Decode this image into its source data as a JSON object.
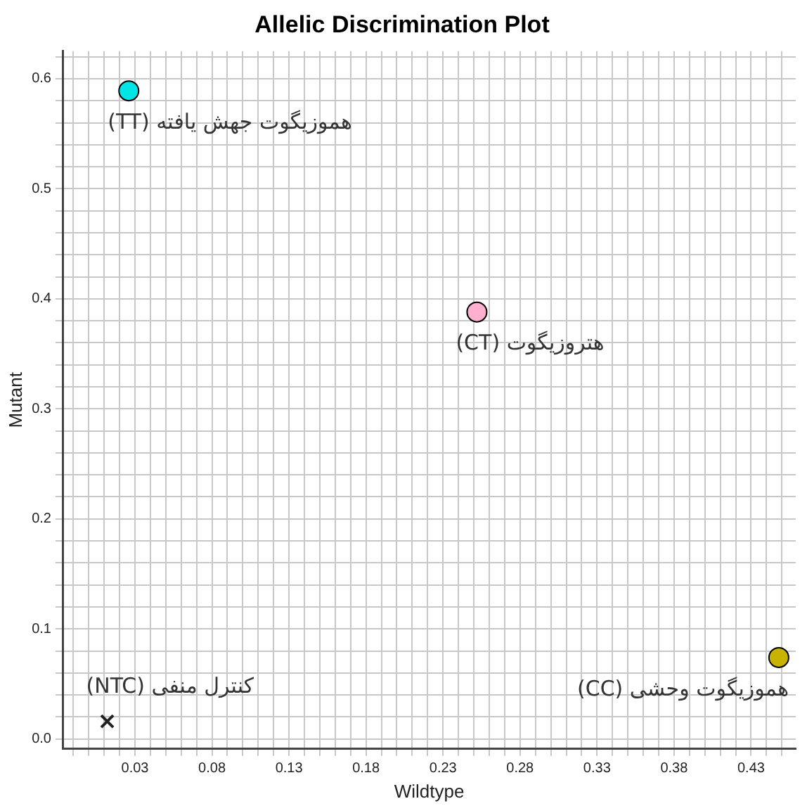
{
  "chart_data": {
    "type": "scatter",
    "title": "Allelic Discrimination Plot",
    "xlabel": "Wildtype",
    "ylabel": "Mutant",
    "xlim": [
      -0.017,
      0.459
    ],
    "ylim": [
      -0.009,
      0.625
    ],
    "xticks": [
      {
        "value": -0.01,
        "label": null
      },
      {
        "value": 0,
        "label": null
      },
      {
        "value": 0.01,
        "label": null
      },
      {
        "value": 0.02,
        "label": null
      },
      0.03,
      {
        "value": 0.04,
        "label": null
      },
      {
        "value": 0.05,
        "label": null
      },
      {
        "value": 0.06,
        "label": null
      },
      {
        "value": 0.07,
        "label": null
      },
      0.08,
      {
        "value": 0.09,
        "label": null
      },
      {
        "value": 0.1,
        "label": null
      },
      {
        "value": 0.11,
        "label": null
      },
      {
        "value": 0.12,
        "label": null
      },
      0.13,
      {
        "value": 0.14,
        "label": null
      },
      {
        "value": 0.15,
        "label": null
      },
      {
        "value": 0.16,
        "label": null
      },
      {
        "value": 0.17,
        "label": null
      },
      0.18,
      {
        "value": 0.19,
        "label": null
      },
      {
        "value": 0.2,
        "label": null
      },
      {
        "value": 0.21,
        "label": null
      },
      {
        "value": 0.22,
        "label": null
      },
      0.23,
      {
        "value": 0.24,
        "label": null
      },
      {
        "value": 0.25,
        "label": null
      },
      {
        "value": 0.26,
        "label": null
      },
      {
        "value": 0.27,
        "label": null
      },
      0.28,
      {
        "value": 0.29,
        "label": null
      },
      {
        "value": 0.3,
        "label": null
      },
      {
        "value": 0.31,
        "label": null
      },
      {
        "value": 0.32,
        "label": null
      },
      0.33,
      {
        "value": 0.34,
        "label": null
      },
      {
        "value": 0.35,
        "label": null
      },
      {
        "value": 0.36,
        "label": null
      },
      {
        "value": 0.37,
        "label": null
      },
      0.38,
      {
        "value": 0.39,
        "label": null
      },
      {
        "value": 0.4,
        "label": null
      },
      {
        "value": 0.41,
        "label": null
      },
      {
        "value": 0.42,
        "label": null
      },
      0.43,
      {
        "value": 0.44,
        "label": null
      },
      {
        "value": 0.45,
        "label": null
      }
    ],
    "yticks": [
      {
        "value": 0,
        "label": "0.0"
      },
      {
        "value": 0.02,
        "label": null
      },
      {
        "value": 0.04,
        "label": null
      },
      {
        "value": 0.06,
        "label": null
      },
      {
        "value": 0.08,
        "label": null
      },
      0.1,
      {
        "value": 0.12,
        "label": null
      },
      {
        "value": 0.14,
        "label": null
      },
      {
        "value": 0.16,
        "label": null
      },
      {
        "value": 0.18,
        "label": null
      },
      0.2,
      {
        "value": 0.22,
        "label": null
      },
      {
        "value": 0.24,
        "label": null
      },
      {
        "value": 0.26,
        "label": null
      },
      {
        "value": 0.28,
        "label": null
      },
      0.3,
      {
        "value": 0.32,
        "label": null
      },
      {
        "value": 0.34,
        "label": null
      },
      {
        "value": 0.36,
        "label": null
      },
      {
        "value": 0.38,
        "label": null
      },
      0.4,
      {
        "value": 0.42,
        "label": null
      },
      {
        "value": 0.44,
        "label": null
      },
      {
        "value": 0.46,
        "label": null
      },
      {
        "value": 0.48,
        "label": null
      },
      0.5,
      {
        "value": 0.52,
        "label": null
      },
      {
        "value": 0.54,
        "label": null
      },
      {
        "value": 0.56,
        "label": null
      },
      {
        "value": 0.58,
        "label": null
      },
      0.6,
      {
        "value": 0.62,
        "label": null
      }
    ],
    "grid": true,
    "legend": false,
    "series": [
      {
        "name": "هموزیگوت جهش یافته (TT)",
        "color": "#00e5e5",
        "x": [
          0.026
        ],
        "values": [
          0.589
        ],
        "marker": "circle"
      },
      {
        "name": "هتروزیگوت (CT)",
        "color": "#ffb0d0",
        "x": [
          0.252
        ],
        "values": [
          0.388
        ],
        "marker": "circle"
      },
      {
        "name": "هموزیگوت وحشی (CC)",
        "color": "#c8b400",
        "x": [
          0.448
        ],
        "values": [
          0.074
        ],
        "marker": "circle"
      },
      {
        "name": "کنترل منفی (NTC)",
        "color": "#222222",
        "x": [
          0.012
        ],
        "values": [
          0.016
        ],
        "marker": "cross"
      }
    ]
  }
}
